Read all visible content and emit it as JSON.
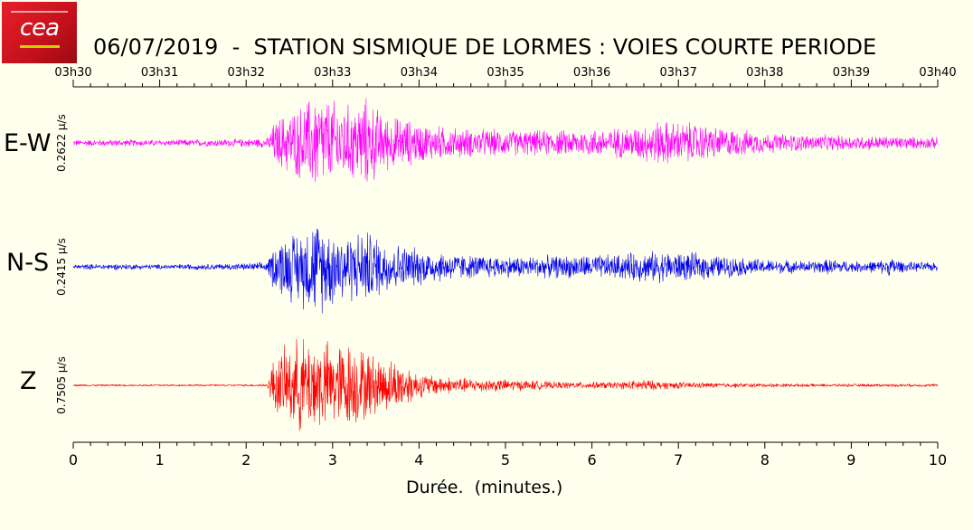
{
  "header": {
    "title": "06/07/2019  -  STATION SISMIQUE DE LORMES : VOIES COURTE PERIODE",
    "logo_text": "cea"
  },
  "colors": {
    "background": "#ffffee",
    "ew": "#ff00ff",
    "ns": "#0000ee",
    "z": "#ff0000"
  },
  "chart_data": {
    "type": "line",
    "top_axis": {
      "ticks": [
        "03h30",
        "03h31",
        "03h32",
        "03h33",
        "03h34",
        "03h35",
        "03h36",
        "03h37",
        "03h38",
        "03h39",
        "03h40"
      ]
    },
    "x": {
      "label": "Durée.  (minutes.)",
      "ticks": [
        "0",
        "1",
        "2",
        "3",
        "4",
        "5",
        "6",
        "7",
        "8",
        "9",
        "10"
      ],
      "range": [
        0,
        10
      ]
    },
    "series": [
      {
        "name": "E-W",
        "scale_label": "0.2622 µ/s",
        "color": "#ff00ff",
        "envelope": {
          "t": [
            0,
            0.5,
            1.0,
            1.5,
            2.0,
            2.25,
            2.3,
            2.4,
            2.6,
            2.8,
            3.0,
            3.2,
            3.4,
            3.6,
            3.8,
            4.0,
            4.3,
            4.6,
            5.0,
            5.3,
            5.6,
            6.0,
            6.3,
            6.5,
            6.8,
            7.0,
            7.2,
            7.5,
            8.0,
            8.5,
            9.0,
            9.5,
            10.0
          ],
          "amp": [
            0.06,
            0.07,
            0.06,
            0.07,
            0.08,
            0.1,
            0.35,
            0.55,
            0.7,
            1.0,
            0.85,
            0.75,
            0.9,
            0.55,
            0.5,
            0.4,
            0.32,
            0.28,
            0.26,
            0.25,
            0.25,
            0.27,
            0.3,
            0.33,
            0.45,
            0.42,
            0.4,
            0.3,
            0.2,
            0.16,
            0.15,
            0.13,
            0.11
          ]
        }
      },
      {
        "name": "N-S",
        "scale_label": "0.2415 µ/s",
        "color": "#0000ee",
        "envelope": {
          "t": [
            0,
            0.5,
            1.0,
            1.5,
            2.0,
            2.25,
            2.3,
            2.4,
            2.6,
            2.8,
            3.0,
            3.2,
            3.4,
            3.6,
            3.8,
            4.0,
            4.3,
            4.6,
            5.0,
            5.3,
            5.6,
            6.0,
            6.3,
            6.5,
            6.8,
            7.0,
            7.2,
            7.5,
            8.0,
            8.5,
            8.8,
            9.0,
            9.3,
            9.5,
            9.6,
            10.0
          ],
          "amp": [
            0.05,
            0.06,
            0.05,
            0.06,
            0.07,
            0.1,
            0.4,
            0.6,
            0.75,
            1.0,
            0.8,
            0.7,
            0.75,
            0.55,
            0.45,
            0.38,
            0.3,
            0.24,
            0.22,
            0.22,
            0.23,
            0.24,
            0.25,
            0.3,
            0.32,
            0.3,
            0.28,
            0.22,
            0.15,
            0.12,
            0.16,
            0.11,
            0.12,
            0.2,
            0.1,
            0.09
          ]
        }
      },
      {
        "name": "Z",
        "scale_label": "0.7505 µ/s",
        "color": "#ff0000",
        "envelope": {
          "t": [
            0,
            0.5,
            1.0,
            1.5,
            2.0,
            2.25,
            2.3,
            2.4,
            2.6,
            2.8,
            3.0,
            3.2,
            3.4,
            3.6,
            3.8,
            4.0,
            4.3,
            4.6,
            5.0,
            5.3,
            5.6,
            6.0,
            6.3,
            6.6,
            6.8,
            7.0,
            7.5,
            8.0,
            8.5,
            9.0,
            9.5,
            10.0
          ],
          "amp": [
            0.02,
            0.02,
            0.02,
            0.02,
            0.02,
            0.03,
            0.5,
            0.7,
            0.95,
            1.0,
            0.85,
            0.9,
            0.7,
            0.55,
            0.5,
            0.25,
            0.18,
            0.14,
            0.12,
            0.1,
            0.07,
            0.07,
            0.07,
            0.12,
            0.08,
            0.07,
            0.05,
            0.04,
            0.03,
            0.03,
            0.03,
            0.03
          ]
        }
      }
    ]
  }
}
